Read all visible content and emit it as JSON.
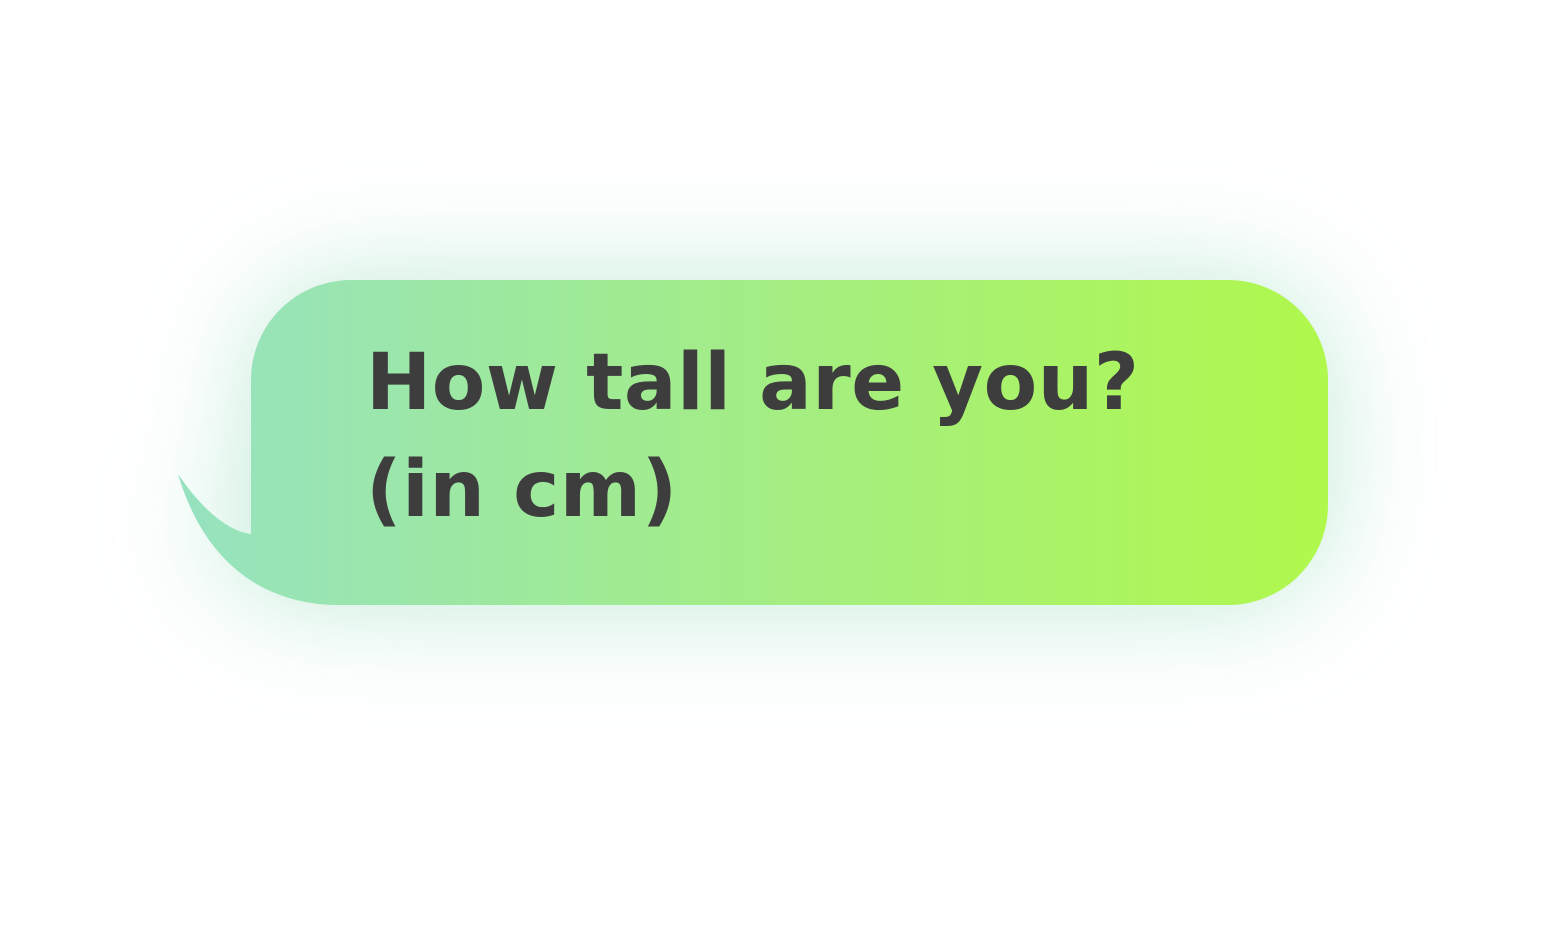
{
  "bubble": {
    "line1": "How tall are you?",
    "line2": "(in cm)",
    "gradient_start": "#96e2c0",
    "gradient_end": "#b0f84c",
    "text_color": "#3d3d3d"
  }
}
